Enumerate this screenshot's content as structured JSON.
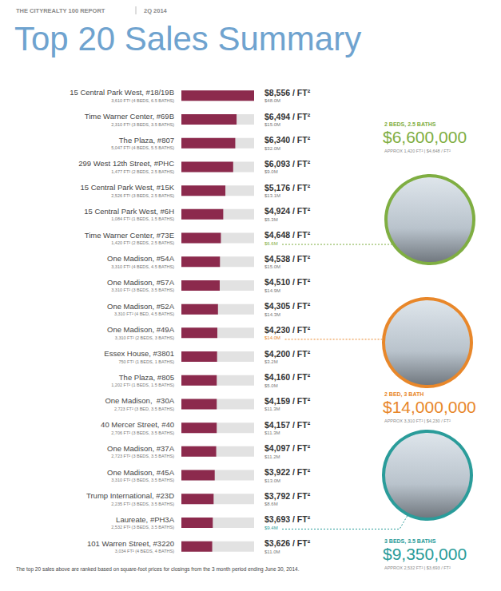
{
  "chart_data": {
    "type": "bar",
    "orientation": "horizontal",
    "report": "THE CITYREALTY 100 REPORT",
    "period": "2Q 2014",
    "title": "Top 20 Sales Summary",
    "footnote": "The top 20 sales above are ranked based on square-foot prices for closings from the 3 month period ending June 30, 2014.",
    "categories": [
      "15 Central Park West, #18/19B",
      "Time Warner Center, #69B",
      "The Plaza, #807",
      "299 West 12th Street, #PHC",
      "15 Central Park West, #15K",
      "15 Central Park West, #6H",
      "Time Warner Center, #73E",
      "One Madison, #54A",
      "One Madison, #57A",
      "One Madison, #52A",
      "One Madison, #49A",
      "Essex House, #3801",
      "The Plaza, #805",
      "One Madison,  #30A",
      "40 Mercer Street, #40",
      "One Madison, #37A",
      "One Madison, #45A",
      "Trump International, #23D",
      "Laureate, #PH3A",
      "101 Warren Street, #3220"
    ],
    "category_details": [
      "3,610 FT² (4 BEDS, 6.5 BATHS)",
      "2,310 FT² (3 BEDS, 3.5 BATHS)",
      "5,047 FT² (4 BEDS, 5.5 BATHS)",
      "1,477 FT² (2 BEDS, 2.5 BATHS)",
      "2,526 FT² (3 BEDS, 2.5 BATHS)",
      "1,084 FT² (1 BEDS, 1.5 BATHS)",
      "1,420 FT² (2 BEDS, 2.5 BATHS)",
      "3,310 FT² (4 BEDS, 4.5 BATHS)",
      "3,310 FT² (3 BEDS, 3.5 BATHS)",
      "3,310 FT² (4 BED, 4.5 BATHS)",
      "3,310 FT² (2 BEDS, 3 BATHS)",
      "750 FT² (1 BEDS, 1 BATHS)",
      "1,202 FT² (1 BEDS, 1.5 BATHS)",
      "2,723 FT² (3 BED, 3.5 BATHS)",
      "2,706 FT² (3 BEDS, 3.5 BATHS)",
      "2,723 FT² (3 BEDS, 3.5 BATHS)",
      "3,310 FT² (3 BEDS, 3.5 BATHS)",
      "2,235 FT² (3 BEDS, 3.5 BATHS)",
      "2,532 FT² (3 BEDS, 3.5 BATHS)",
      "3,034 FT² (4 BEDS, 4 BATHS)"
    ],
    "values": [
      8556,
      6494,
      6340,
      6093,
      5176,
      4924,
      4648,
      4538,
      4510,
      4305,
      4230,
      4200,
      4160,
      4159,
      4157,
      4097,
      3922,
      3792,
      3693,
      3626
    ],
    "value_labels": [
      "$8,556 / FT²",
      "$6,494 / FT²",
      "$6,340 / FT²",
      "$6,093 / FT²",
      "$5,176 / FT²",
      "$4,924 / FT²",
      "$4,648 / FT²",
      "$4,538 / FT²",
      "$4,510 / FT²",
      "$4,305 / FT²",
      "$4,230 / FT²",
      "$4,200 / FT²",
      "$4,160 / FT²",
      "$4,159 / FT²",
      "$4,157 / FT²",
      "$4,097 / FT²",
      "$3,922 / FT²",
      "$3,792 / FT²",
      "$3,693 / FT²",
      "$3,626 / FT²"
    ],
    "sale_prices": [
      48000000,
      15000000,
      32000000,
      9000000,
      13100000,
      5300000,
      6600000,
      15000000,
      14900000,
      14300000,
      14000000,
      3200000,
      5000000,
      11300000,
      11300000,
      11200000,
      13000000,
      8600000,
      9400000,
      11000000
    ],
    "sale_price_labels": [
      "$48.0M",
      "$15.0M",
      "$32.0M",
      "$9.0M",
      "$13.1M",
      "$5.3M",
      "$6.6M",
      "$15.0M",
      "$14.9M",
      "$14.3M",
      "$14.0M",
      "$3.2M",
      "$5.0M",
      "$11.3M",
      "$11.3M",
      "$11.2M",
      "$13.0M",
      "$8.6M",
      "$9.4M",
      "$11.0M"
    ],
    "color": "#8c2a4d",
    "xlim": [
      0,
      8556
    ],
    "grid": false,
    "tick_labels": false,
    "data_labels": true,
    "callouts": [
      {
        "category": "Time Warner Center, #73E",
        "color": "#7fae42",
        "rooms": "2 BEDS, 2.5 BATHS",
        "price": 6600000,
        "price_label": "$6,600,000",
        "details": "APPROX 1,420 FT² | $4,648 / FT²"
      },
      {
        "category": "One Madison, #49A",
        "color": "#e8872a",
        "rooms": "2 BED, 3 BATH",
        "price": 14000000,
        "price_label": "$14,000,000",
        "details": "APPROX 3,310 FT² | $4,230 / FT²"
      },
      {
        "category": "Laureate, #PH3A",
        "color": "#2a9c9a",
        "rooms": "3 BEDS, 3.5 BATHS",
        "price": 9350000,
        "price_label": "$9,350,000",
        "details": "APPROX 2,532 FT² | $3,693 / FT²"
      }
    ]
  }
}
